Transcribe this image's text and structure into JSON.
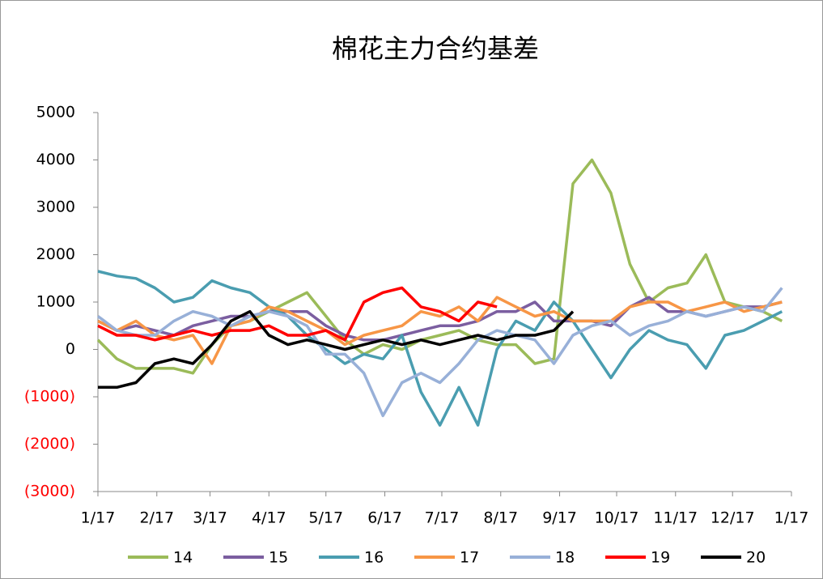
{
  "chart_data": {
    "type": "line",
    "title": "棉花主力合约基差",
    "x": [
      0,
      10,
      20,
      30,
      40,
      50,
      60,
      70,
      80,
      90,
      100,
      110,
      120,
      130,
      140,
      150,
      160,
      170,
      180,
      190,
      200,
      210,
      220,
      230,
      240,
      250,
      260,
      270,
      280,
      290,
      300,
      310,
      320,
      330,
      340,
      350,
      360
    ],
    "xlim": [
      0,
      365
    ],
    "xticks": [
      {
        "value": 0,
        "label": "1/17"
      },
      {
        "value": 31,
        "label": "2/17"
      },
      {
        "value": 59,
        "label": "3/17"
      },
      {
        "value": 90,
        "label": "4/17"
      },
      {
        "value": 120,
        "label": "5/17"
      },
      {
        "value": 151,
        "label": "6/17"
      },
      {
        "value": 181,
        "label": "7/17"
      },
      {
        "value": 212,
        "label": "8/17"
      },
      {
        "value": 243,
        "label": "9/17"
      },
      {
        "value": 273,
        "label": "10/17"
      },
      {
        "value": 304,
        "label": "11/17"
      },
      {
        "value": 334,
        "label": "12/17"
      },
      {
        "value": 365,
        "label": "1/17"
      }
    ],
    "ylim": [
      -3000,
      5000
    ],
    "yticks": [
      {
        "value": -3000,
        "label": "(3000)"
      },
      {
        "value": -2000,
        "label": "(2000)"
      },
      {
        "value": -1000,
        "label": "(1000)"
      },
      0,
      1000,
      2000,
      3000,
      4000,
      5000
    ],
    "negative_tick_color": "#ff0000",
    "series": [
      {
        "name": "14",
        "color": "#9bbb59",
        "values": [
          200,
          -200,
          -400,
          -400,
          -400,
          -500,
          100,
          500,
          600,
          800,
          1000,
          1200,
          700,
          200,
          -100,
          100,
          0,
          200,
          300,
          400,
          200,
          100,
          100,
          -300,
          -200,
          3500,
          4000,
          3300,
          1800,
          1000,
          1300,
          1400,
          2000,
          1000,
          900,
          800,
          600
        ]
      },
      {
        "name": "15",
        "color": "#7b5ea0",
        "values": [
          600,
          400,
          500,
          400,
          300,
          500,
          600,
          700,
          700,
          800,
          800,
          800,
          500,
          300,
          200,
          200,
          300,
          400,
          500,
          500,
          600,
          800,
          800,
          1000,
          600,
          600,
          600,
          500,
          900,
          1100,
          800,
          800,
          700,
          800,
          900,
          900,
          1000
        ]
      },
      {
        "name": "16",
        "color": "#4a9db0",
        "values": [
          1650,
          1550,
          1500,
          1300,
          1000,
          1100,
          1450,
          1300,
          1200,
          900,
          700,
          300,
          0,
          -300,
          -100,
          -200,
          300,
          -900,
          -1600,
          -800,
          -1600,
          0,
          600,
          400,
          1000,
          600,
          0,
          -600,
          0,
          400,
          200,
          100,
          -400,
          300,
          400,
          600,
          800
        ]
      },
      {
        "name": "17",
        "color": "#f79646",
        "values": [
          600,
          400,
          600,
          300,
          200,
          300,
          -300,
          500,
          600,
          900,
          800,
          600,
          400,
          100,
          300,
          400,
          500,
          800,
          700,
          900,
          600,
          1100,
          900,
          700,
          800,
          600,
          600,
          600,
          900,
          1000,
          1000,
          800,
          900,
          1000,
          800,
          900,
          1000
        ]
      },
      {
        "name": "18",
        "color": "#98b0d8",
        "values": [
          700,
          400,
          300,
          300,
          600,
          800,
          700,
          500,
          700,
          800,
          700,
          500,
          -100,
          -100,
          -500,
          -1400,
          -700,
          -500,
          -700,
          -300,
          200,
          400,
          300,
          200,
          -300,
          300,
          500,
          600,
          300,
          500,
          600,
          800,
          700,
          800,
          900,
          800,
          1300
        ]
      },
      {
        "name": "19",
        "color": "#ff0000",
        "values": [
          500,
          300,
          300,
          200,
          300,
          400,
          300,
          400,
          400,
          500,
          300,
          300,
          400,
          200,
          1000,
          1200,
          1300,
          900,
          800,
          600,
          1000,
          900,
          null,
          null,
          null,
          null,
          null,
          null,
          null,
          null,
          null,
          null,
          null,
          null,
          null,
          null,
          null
        ]
      },
      {
        "name": "20",
        "color": "#000000",
        "values": [
          -800,
          -800,
          -700,
          -300,
          -200,
          -300,
          100,
          600,
          800,
          300,
          100,
          200,
          100,
          0,
          100,
          200,
          100,
          200,
          100,
          200,
          300,
          200,
          300,
          300,
          400,
          800,
          null,
          null,
          null,
          null,
          null,
          null,
          null,
          null,
          null,
          null,
          null
        ]
      }
    ]
  }
}
